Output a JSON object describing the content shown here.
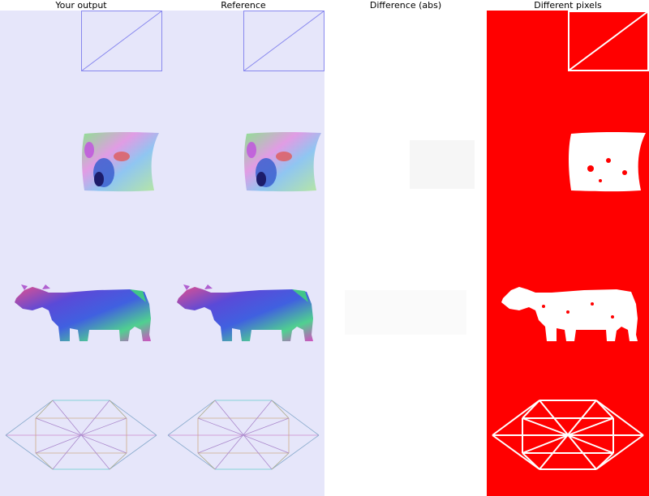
{
  "titles": {
    "output": "Your output",
    "reference": "Reference",
    "difference": "Difference (abs)",
    "different_pixels": "Different pixels"
  },
  "colors": {
    "render_background": "#e6e6fa",
    "difference_background": "#ffffff",
    "mask_background": "#ff0000",
    "mask_foreground": "#ffffff",
    "frame_edge": "#8888ee"
  },
  "objects": [
    "square-wireframe",
    "normal-map-patch",
    "cow-mesh",
    "octahedron-wireframe"
  ]
}
